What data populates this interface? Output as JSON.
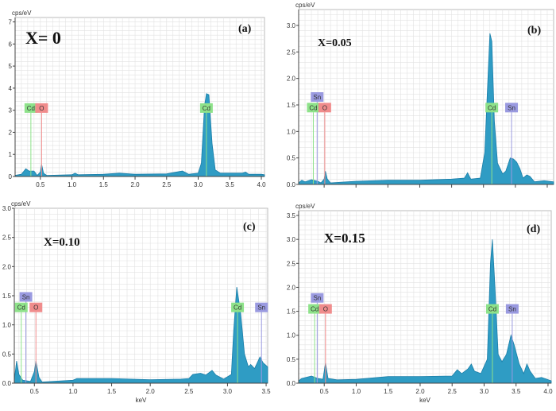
{
  "colors": {
    "fill": "#2f9cc4",
    "edge": "#1b7ea8",
    "grid": "#e2e2e2",
    "cd": "#8ee28a",
    "o": "#f08c8c",
    "sn": "#9a9ae0"
  },
  "chart_data": [
    {
      "type": "area",
      "panel": "(a)",
      "title": "X= 0",
      "ylabel": "cps/eV",
      "xlabel": "",
      "xlim": [
        0.1,
        4.05
      ],
      "ylim": [
        0,
        7.2
      ],
      "xticks": [
        0.5,
        1.0,
        1.5,
        2.0,
        2.5,
        3.0,
        3.5,
        4.0
      ],
      "xtick_labels": [
        "0.5",
        "1.0",
        "1.5",
        "2.0",
        "2.5",
        "3.0",
        "3.5",
        "4.0"
      ],
      "yticks": [
        0,
        1,
        2,
        3,
        4,
        5,
        6,
        7
      ],
      "ytick_labels": [
        "0",
        "1",
        "2",
        "3",
        "4",
        "5",
        "6",
        "7"
      ],
      "peaks": [
        {
          "label": "Cd",
          "x": 0.35,
          "y": 3.1,
          "el": "cd"
        },
        {
          "label": "O",
          "x": 0.52,
          "y": 3.1,
          "el": "o"
        },
        {
          "label": "Cd",
          "x": 3.13,
          "y": 3.1,
          "el": "cd"
        }
      ],
      "spectrum": [
        [
          0.1,
          0.05
        ],
        [
          0.2,
          0.1
        ],
        [
          0.27,
          0.35
        ],
        [
          0.32,
          0.25
        ],
        [
          0.4,
          0.25
        ],
        [
          0.45,
          0.05
        ],
        [
          0.5,
          0.2
        ],
        [
          0.52,
          0.55
        ],
        [
          0.55,
          0.15
        ],
        [
          0.6,
          0.05
        ],
        [
          1.0,
          0.08
        ],
        [
          1.05,
          0.15
        ],
        [
          1.1,
          0.08
        ],
        [
          1.5,
          0.1
        ],
        [
          1.75,
          0.15
        ],
        [
          2.0,
          0.1
        ],
        [
          2.5,
          0.12
        ],
        [
          2.75,
          0.25
        ],
        [
          2.85,
          0.1
        ],
        [
          3.0,
          0.15
        ],
        [
          3.05,
          0.6
        ],
        [
          3.1,
          3.2
        ],
        [
          3.13,
          3.75
        ],
        [
          3.17,
          3.7
        ],
        [
          3.22,
          1.5
        ],
        [
          3.27,
          0.3
        ],
        [
          3.35,
          0.15
        ],
        [
          3.7,
          0.15
        ],
        [
          3.75,
          0.2
        ],
        [
          3.8,
          0.1
        ],
        [
          4.0,
          0.1
        ],
        [
          4.05,
          0.08
        ]
      ]
    },
    {
      "type": "area",
      "panel": "(b)",
      "title": "X=0.05",
      "ylabel": "cps/eV",
      "xlabel": "",
      "xlim": [
        0.1,
        4.1
      ],
      "ylim": [
        0,
        3.3
      ],
      "xticks": [
        0.5,
        1.0,
        1.5,
        2.0,
        2.5,
        3.0,
        3.5,
        4.0
      ],
      "xtick_labels": [],
      "yticks": [
        0,
        0.5,
        1,
        1.5,
        2,
        2.5,
        3
      ],
      "ytick_labels": [
        "0.0",
        "0.5",
        "1.0",
        "1.5",
        "2.0",
        "2.5",
        "3.0"
      ],
      "peaks": [
        {
          "label": "Sn",
          "x": 0.39,
          "y": 1.65,
          "el": "sn"
        },
        {
          "label": "Cd",
          "x": 0.33,
          "y": 1.45,
          "el": "cd"
        },
        {
          "label": "O",
          "x": 0.51,
          "y": 1.45,
          "el": "o"
        },
        {
          "label": "Cd",
          "x": 3.13,
          "y": 1.45,
          "el": "cd"
        },
        {
          "label": "Sn",
          "x": 3.44,
          "y": 1.45,
          "el": "sn"
        }
      ],
      "spectrum": [
        [
          0.1,
          0.03
        ],
        [
          0.15,
          0.08
        ],
        [
          0.2,
          0.05
        ],
        [
          0.3,
          0.09
        ],
        [
          0.4,
          0.06
        ],
        [
          0.45,
          0.03
        ],
        [
          0.5,
          0.1
        ],
        [
          0.52,
          0.25
        ],
        [
          0.55,
          0.1
        ],
        [
          0.6,
          0.03
        ],
        [
          1.0,
          0.06
        ],
        [
          1.5,
          0.08
        ],
        [
          2.0,
          0.08
        ],
        [
          2.5,
          0.1
        ],
        [
          2.7,
          0.12
        ],
        [
          2.75,
          0.22
        ],
        [
          2.8,
          0.1
        ],
        [
          2.95,
          0.12
        ],
        [
          3.02,
          0.6
        ],
        [
          3.07,
          2.0
        ],
        [
          3.1,
          2.85
        ],
        [
          3.13,
          2.7
        ],
        [
          3.17,
          1.2
        ],
        [
          3.22,
          0.4
        ],
        [
          3.3,
          0.2
        ],
        [
          3.35,
          0.25
        ],
        [
          3.42,
          0.5
        ],
        [
          3.47,
          0.48
        ],
        [
          3.52,
          0.42
        ],
        [
          3.57,
          0.3
        ],
        [
          3.62,
          0.12
        ],
        [
          3.68,
          0.18
        ],
        [
          3.73,
          0.15
        ],
        [
          3.8,
          0.05
        ],
        [
          3.95,
          0.07
        ],
        [
          4.1,
          0.05
        ]
      ]
    },
    {
      "type": "area",
      "panel": "(c)",
      "title": "X=0.10",
      "ylabel": "cps/eV",
      "xlabel": "keV",
      "xlim": [
        0.24,
        3.52
      ],
      "ylim": [
        0,
        3.0
      ],
      "xticks": [
        0.5,
        1.0,
        1.5,
        2.0,
        2.5,
        3.0,
        3.5
      ],
      "xtick_labels": [
        "0.5",
        "1.0",
        "1.5",
        "2.0",
        "2.5",
        "3.0",
        "3.5"
      ],
      "yticks": [
        0,
        0.5,
        1,
        1.5,
        2,
        2.5,
        3
      ],
      "ytick_labels": [
        "0.0",
        "0.5",
        "1.0",
        "1.5",
        "2.0",
        "2.5",
        "3.0"
      ],
      "peaks": [
        {
          "label": "Sn",
          "x": 0.39,
          "y": 1.48,
          "el": "sn"
        },
        {
          "label": "Cd",
          "x": 0.33,
          "y": 1.3,
          "el": "cd"
        },
        {
          "label": "O",
          "x": 0.52,
          "y": 1.3,
          "el": "o"
        },
        {
          "label": "Cd",
          "x": 3.13,
          "y": 1.3,
          "el": "cd"
        },
        {
          "label": "Sn",
          "x": 3.44,
          "y": 1.3,
          "el": "sn"
        }
      ],
      "spectrum": [
        [
          0.24,
          0.05
        ],
        [
          0.27,
          0.38
        ],
        [
          0.3,
          0.15
        ],
        [
          0.35,
          0.05
        ],
        [
          0.45,
          0.03
        ],
        [
          0.5,
          0.2
        ],
        [
          0.52,
          0.38
        ],
        [
          0.56,
          0.1
        ],
        [
          0.6,
          0.02
        ],
        [
          1.0,
          0.05
        ],
        [
          1.05,
          0.08
        ],
        [
          1.5,
          0.08
        ],
        [
          2.0,
          0.06
        ],
        [
          2.4,
          0.07
        ],
        [
          2.5,
          0.08
        ],
        [
          2.55,
          0.15
        ],
        [
          2.65,
          0.17
        ],
        [
          2.72,
          0.14
        ],
        [
          2.8,
          0.22
        ],
        [
          2.85,
          0.14
        ],
        [
          2.95,
          0.07
        ],
        [
          3.05,
          0.15
        ],
        [
          3.08,
          0.9
        ],
        [
          3.12,
          1.65
        ],
        [
          3.17,
          1.2
        ],
        [
          3.22,
          0.5
        ],
        [
          3.27,
          0.28
        ],
        [
          3.3,
          0.32
        ],
        [
          3.35,
          0.25
        ],
        [
          3.42,
          0.45
        ],
        [
          3.46,
          0.35
        ],
        [
          3.52,
          0.28
        ]
      ]
    },
    {
      "type": "area",
      "panel": "(d)",
      "title": "X=0.15",
      "ylabel": "cps/eV",
      "xlabel": "keV",
      "xlim": [
        0.1,
        4.05
      ],
      "ylim": [
        0,
        3.6
      ],
      "xticks": [
        0.5,
        1.0,
        1.5,
        2.0,
        2.5,
        3.0,
        3.5,
        4.0
      ],
      "xtick_labels": [
        "0.5",
        "1.0",
        "1.5",
        "2.0",
        "2.5",
        "3.0",
        "3.5",
        "4.0"
      ],
      "yticks": [
        0,
        0.5,
        1,
        1.5,
        2,
        2.5,
        3,
        3.5
      ],
      "ytick_labels": [
        "0.0",
        "0.5",
        "1.0",
        "1.5",
        "2.0",
        "2.5",
        "3.0",
        "3.5"
      ],
      "peaks": [
        {
          "label": "Sn",
          "x": 0.39,
          "y": 1.78,
          "el": "sn"
        },
        {
          "label": "Cd",
          "x": 0.35,
          "y": 1.55,
          "el": "cd"
        },
        {
          "label": "O",
          "x": 0.52,
          "y": 1.55,
          "el": "o"
        },
        {
          "label": "Cd",
          "x": 3.13,
          "y": 1.55,
          "el": "cd"
        },
        {
          "label": "Sn",
          "x": 3.44,
          "y": 1.55,
          "el": "sn"
        }
      ],
      "spectrum": [
        [
          0.1,
          0.05
        ],
        [
          0.15,
          0.1
        ],
        [
          0.3,
          0.15
        ],
        [
          0.4,
          0.1
        ],
        [
          0.48,
          0.08
        ],
        [
          0.52,
          0.42
        ],
        [
          0.56,
          0.1
        ],
        [
          0.7,
          0.07
        ],
        [
          1.0,
          0.08
        ],
        [
          1.5,
          0.14
        ],
        [
          2.0,
          0.14
        ],
        [
          2.5,
          0.15
        ],
        [
          2.58,
          0.28
        ],
        [
          2.65,
          0.2
        ],
        [
          2.75,
          0.3
        ],
        [
          2.8,
          0.4
        ],
        [
          2.85,
          0.25
        ],
        [
          2.95,
          0.2
        ],
        [
          3.05,
          0.5
        ],
        [
          3.1,
          2.5
        ],
        [
          3.13,
          3.0
        ],
        [
          3.17,
          2.0
        ],
        [
          3.22,
          0.6
        ],
        [
          3.28,
          0.45
        ],
        [
          3.35,
          0.6
        ],
        [
          3.42,
          1.0
        ],
        [
          3.47,
          0.8
        ],
        [
          3.55,
          0.4
        ],
        [
          3.62,
          0.2
        ],
        [
          3.67,
          0.4
        ],
        [
          3.72,
          0.25
        ],
        [
          3.8,
          0.1
        ],
        [
          3.9,
          0.12
        ],
        [
          4.05,
          0.05
        ]
      ]
    }
  ]
}
